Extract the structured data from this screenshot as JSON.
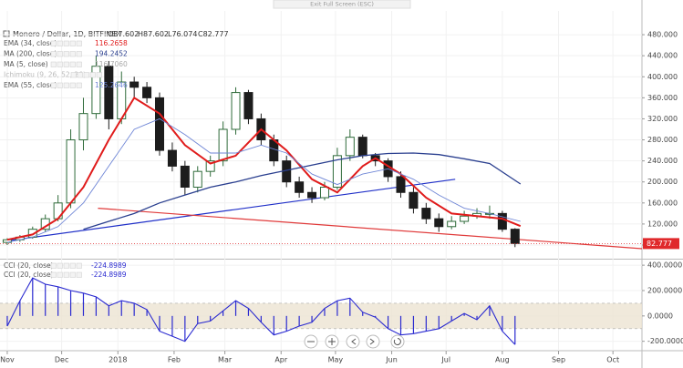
{
  "exit_button": "Exit Full Screen (ESC)",
  "chart_data": [
    {
      "type": "candlestick",
      "title": "Monero / Dollar, 1D, BITFINEX",
      "ohlc": [
        "O87.602",
        "H87.602",
        "L76.074",
        "C82.777"
      ],
      "x": [
        0,
        7,
        14,
        21,
        28,
        35,
        42,
        49,
        56,
        63,
        70,
        77,
        84,
        91,
        98,
        105,
        112,
        119,
        126,
        133,
        140,
        147,
        154,
        161,
        168,
        175,
        182,
        189,
        196,
        203,
        210,
        217,
        224,
        231,
        238,
        245,
        252,
        259,
        266,
        273,
        280
      ],
      "open": [
        85,
        90,
        95,
        110,
        130,
        160,
        280,
        330,
        420,
        320,
        390,
        380,
        360,
        260,
        230,
        190,
        220,
        240,
        300,
        370,
        320,
        280,
        240,
        200,
        180,
        170,
        190,
        250,
        285,
        250,
        240,
        210,
        180,
        150,
        130,
        115,
        125,
        135,
        140,
        140,
        110
      ],
      "high": [
        93,
        99,
        115,
        138,
        175,
        300,
        360,
        440,
        430,
        410,
        400,
        390,
        370,
        275,
        240,
        230,
        250,
        315,
        380,
        375,
        330,
        290,
        250,
        210,
        190,
        200,
        265,
        300,
        290,
        255,
        245,
        220,
        190,
        160,
        140,
        135,
        145,
        150,
        155,
        145,
        112
      ],
      "low": [
        80,
        86,
        92,
        105,
        125,
        150,
        260,
        320,
        300,
        310,
        360,
        350,
        250,
        220,
        175,
        180,
        210,
        230,
        290,
        310,
        270,
        230,
        190,
        170,
        160,
        165,
        185,
        240,
        245,
        230,
        200,
        170,
        140,
        120,
        105,
        110,
        120,
        130,
        130,
        105,
        76
      ],
      "close": [
        90,
        95,
        110,
        130,
        160,
        280,
        330,
        420,
        320,
        390,
        380,
        360,
        260,
        230,
        190,
        220,
        240,
        300,
        370,
        320,
        280,
        240,
        200,
        180,
        170,
        190,
        250,
        285,
        250,
        240,
        210,
        180,
        150,
        130,
        115,
        125,
        135,
        140,
        140,
        110,
        83
      ],
      "up_color": "#2f6b3a",
      "down_color": "#1c1c1c",
      "xlim": [
        -4,
        350
      ],
      "xticks": [
        {
          "value": 0,
          "label": "Nov"
        },
        {
          "value": 30,
          "label": "Dec"
        },
        {
          "value": 61,
          "label": "2018"
        },
        {
          "value": 92,
          "label": "Feb"
        },
        {
          "value": 120,
          "label": "Mar"
        },
        {
          "value": 151,
          "label": "Apr"
        },
        {
          "value": 181,
          "label": "May"
        },
        {
          "value": 212,
          "label": "Jun"
        },
        {
          "value": 242,
          "label": "Jul"
        },
        {
          "value": 273,
          "label": "Aug"
        },
        {
          "value": 304,
          "label": "Sep"
        },
        {
          "value": 334,
          "label": "Oct"
        }
      ],
      "ylim": [
        54,
        494
      ],
      "yticks": [
        {
          "value": 480,
          "label": "480.000"
        },
        {
          "value": 440,
          "label": "440.000"
        },
        {
          "value": 400,
          "label": "400.000"
        },
        {
          "value": 360,
          "label": "360.000"
        },
        {
          "value": 320,
          "label": "320.000"
        },
        {
          "value": 280,
          "label": "280.000"
        },
        {
          "value": 240,
          "label": "240.000"
        },
        {
          "value": 200,
          "label": "200.000"
        },
        {
          "value": 160,
          "label": "160.000"
        },
        {
          "value": 120,
          "label": "120.000"
        },
        {
          "value": 80,
          "label": "80.000"
        }
      ],
      "grid": true,
      "series": [
        {
          "name": "EMA (34, close)",
          "value_label": "116.2658",
          "color": "#e01b1b",
          "width": 2,
          "x": [
            0,
            14,
            28,
            42,
            56,
            70,
            84,
            98,
            112,
            126,
            140,
            154,
            168,
            182,
            196,
            203,
            217,
            231,
            245,
            259,
            273,
            283
          ],
          "values": [
            90,
            100,
            130,
            190,
            280,
            360,
            330,
            270,
            235,
            250,
            300,
            260,
            205,
            180,
            230,
            245,
            215,
            170,
            140,
            135,
            130,
            116
          ]
        },
        {
          "name": "MA (200, close)",
          "value_label": "194.2452",
          "color": "#2a3f8f",
          "width": 1.3,
          "x": [
            42,
            56,
            70,
            84,
            98,
            112,
            126,
            140,
            154,
            168,
            182,
            196,
            210,
            224,
            238,
            252,
            266,
            283
          ],
          "values": [
            110,
            125,
            140,
            160,
            175,
            190,
            200,
            212,
            222,
            232,
            242,
            250,
            254,
            255,
            252,
            244,
            235,
            196
          ]
        },
        {
          "name": "EMA (55, close)",
          "value_label": "125.2646",
          "color": "#6f86d6",
          "width": 0.9,
          "x": [
            0,
            14,
            28,
            42,
            56,
            70,
            84,
            98,
            112,
            126,
            140,
            154,
            168,
            182,
            196,
            210,
            224,
            238,
            252,
            266,
            283
          ],
          "values": [
            85,
            95,
            115,
            160,
            230,
            300,
            320,
            290,
            255,
            255,
            270,
            255,
            215,
            195,
            215,
            225,
            205,
            175,
            150,
            140,
            125
          ]
        }
      ],
      "other_studies": [
        {
          "name": "MA (5, close)",
          "value_label": "116.7060"
        },
        {
          "name": "Ichimoku (9, 26, 52, 26)"
        }
      ],
      "trendlines": [
        {
          "color": "#1f2fc8",
          "x": [
            0,
            247
          ],
          "y": [
            88,
            205
          ]
        },
        {
          "color": "#e03a3a",
          "x": [
            50,
            350
          ],
          "y": [
            150,
            73
          ]
        }
      ],
      "last_price": {
        "value": 82.777,
        "label": "82.777",
        "color": "#e0292b"
      }
    },
    {
      "type": "cci",
      "legend": [
        {
          "name": "CCI (20, close)",
          "value_label": "-224.8989"
        },
        {
          "name": "CCI (20, close)",
          "value_label": "-224.8989"
        }
      ],
      "x": [
        0,
        7,
        14,
        21,
        28,
        35,
        42,
        49,
        56,
        63,
        70,
        77,
        84,
        91,
        98,
        105,
        112,
        119,
        126,
        133,
        140,
        147,
        154,
        161,
        168,
        175,
        182,
        189,
        196,
        203,
        210,
        217,
        224,
        231,
        238,
        245,
        252,
        259,
        266,
        273,
        280
      ],
      "values": [
        -80,
        120,
        300,
        250,
        230,
        200,
        180,
        150,
        80,
        120,
        100,
        50,
        -120,
        -160,
        -200,
        -60,
        -40,
        40,
        120,
        60,
        -50,
        -150,
        -120,
        -80,
        -50,
        60,
        120,
        140,
        30,
        -10,
        -100,
        -150,
        -140,
        -120,
        -100,
        -40,
        20,
        -30,
        80,
        -120,
        -225
      ],
      "color": "#2a2ad0",
      "band": [
        -100,
        100
      ],
      "band_color": "#ece3d2",
      "ylim": [
        -274,
        444
      ],
      "yticks": [
        {
          "value": 400,
          "label": "400.0000"
        },
        {
          "value": 200,
          "label": "200.0000"
        },
        {
          "value": 0,
          "label": "0.0000"
        },
        {
          "value": -200,
          "label": "-200.0000"
        }
      ]
    }
  ]
}
